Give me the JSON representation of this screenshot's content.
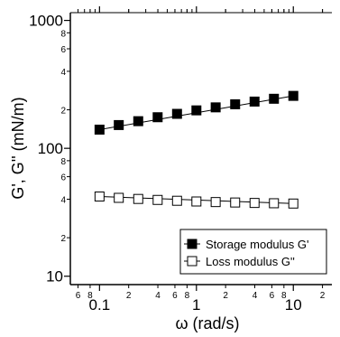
{
  "chart_data": {
    "type": "line",
    "title": "",
    "xlabel": "ω (rad/s)",
    "ylabel": "G', G'' (mN/m)",
    "xscale": "log",
    "yscale": "log",
    "xlim": [
      0.05,
      25
    ],
    "ylim": [
      8.6,
      1150
    ],
    "grid": false,
    "legend_position": "bottom-right",
    "x_major_ticks": [
      {
        "value": 0.1,
        "label": "0.1"
      },
      {
        "value": 1,
        "label": "1"
      },
      {
        "value": 10,
        "label": "10"
      }
    ],
    "x_minor_ticks": [
      {
        "value": 0.06,
        "label": "6"
      },
      {
        "value": 0.08,
        "label": "8"
      },
      {
        "value": 0.2,
        "label": "2"
      },
      {
        "value": 0.4,
        "label": "4"
      },
      {
        "value": 0.6,
        "label": "6"
      },
      {
        "value": 0.8,
        "label": "8"
      },
      {
        "value": 2,
        "label": "2"
      },
      {
        "value": 4,
        "label": "4"
      },
      {
        "value": 6,
        "label": "6"
      },
      {
        "value": 8,
        "label": "8"
      },
      {
        "value": 20,
        "label": "2"
      }
    ],
    "y_major_ticks": [
      {
        "value": 10,
        "label": "10"
      },
      {
        "value": 100,
        "label": "100"
      },
      {
        "value": 1000,
        "label": "1000"
      }
    ],
    "y_minor_ticks": [
      {
        "value": 20,
        "label": "2"
      },
      {
        "value": 40,
        "label": "4"
      },
      {
        "value": 60,
        "label": "6"
      },
      {
        "value": 80,
        "label": "8"
      },
      {
        "value": 200,
        "label": "2"
      },
      {
        "value": 400,
        "label": "4"
      },
      {
        "value": 600,
        "label": "6"
      },
      {
        "value": 800,
        "label": "8"
      }
    ],
    "series": [
      {
        "name": "Storage modulus G'",
        "marker": "filled-square",
        "color": "#000000",
        "x": [
          0.1,
          0.158,
          0.251,
          0.398,
          0.631,
          1.0,
          1.58,
          2.51,
          3.98,
          6.31,
          10.0
        ],
        "y": [
          140,
          152,
          163,
          175,
          186,
          198,
          209,
          221,
          232,
          244,
          257
        ],
        "fit_line": {
          "x": [
            0.1,
            10.0
          ],
          "y": [
            140,
            257
          ]
        }
      },
      {
        "name": "Loss modulus G''",
        "marker": "open-square",
        "color": "#000000",
        "x": [
          0.1,
          0.158,
          0.251,
          0.398,
          0.631,
          1.0,
          1.58,
          2.51,
          3.98,
          6.31,
          10.0
        ],
        "y": [
          42.0,
          41.0,
          40.2,
          39.5,
          38.9,
          38.4,
          38.0,
          37.7,
          37.4,
          37.2,
          37.0
        ],
        "fit_line": {
          "x": [
            0.1,
            10.0
          ],
          "y": [
            42.0,
            37.0
          ]
        }
      }
    ]
  }
}
